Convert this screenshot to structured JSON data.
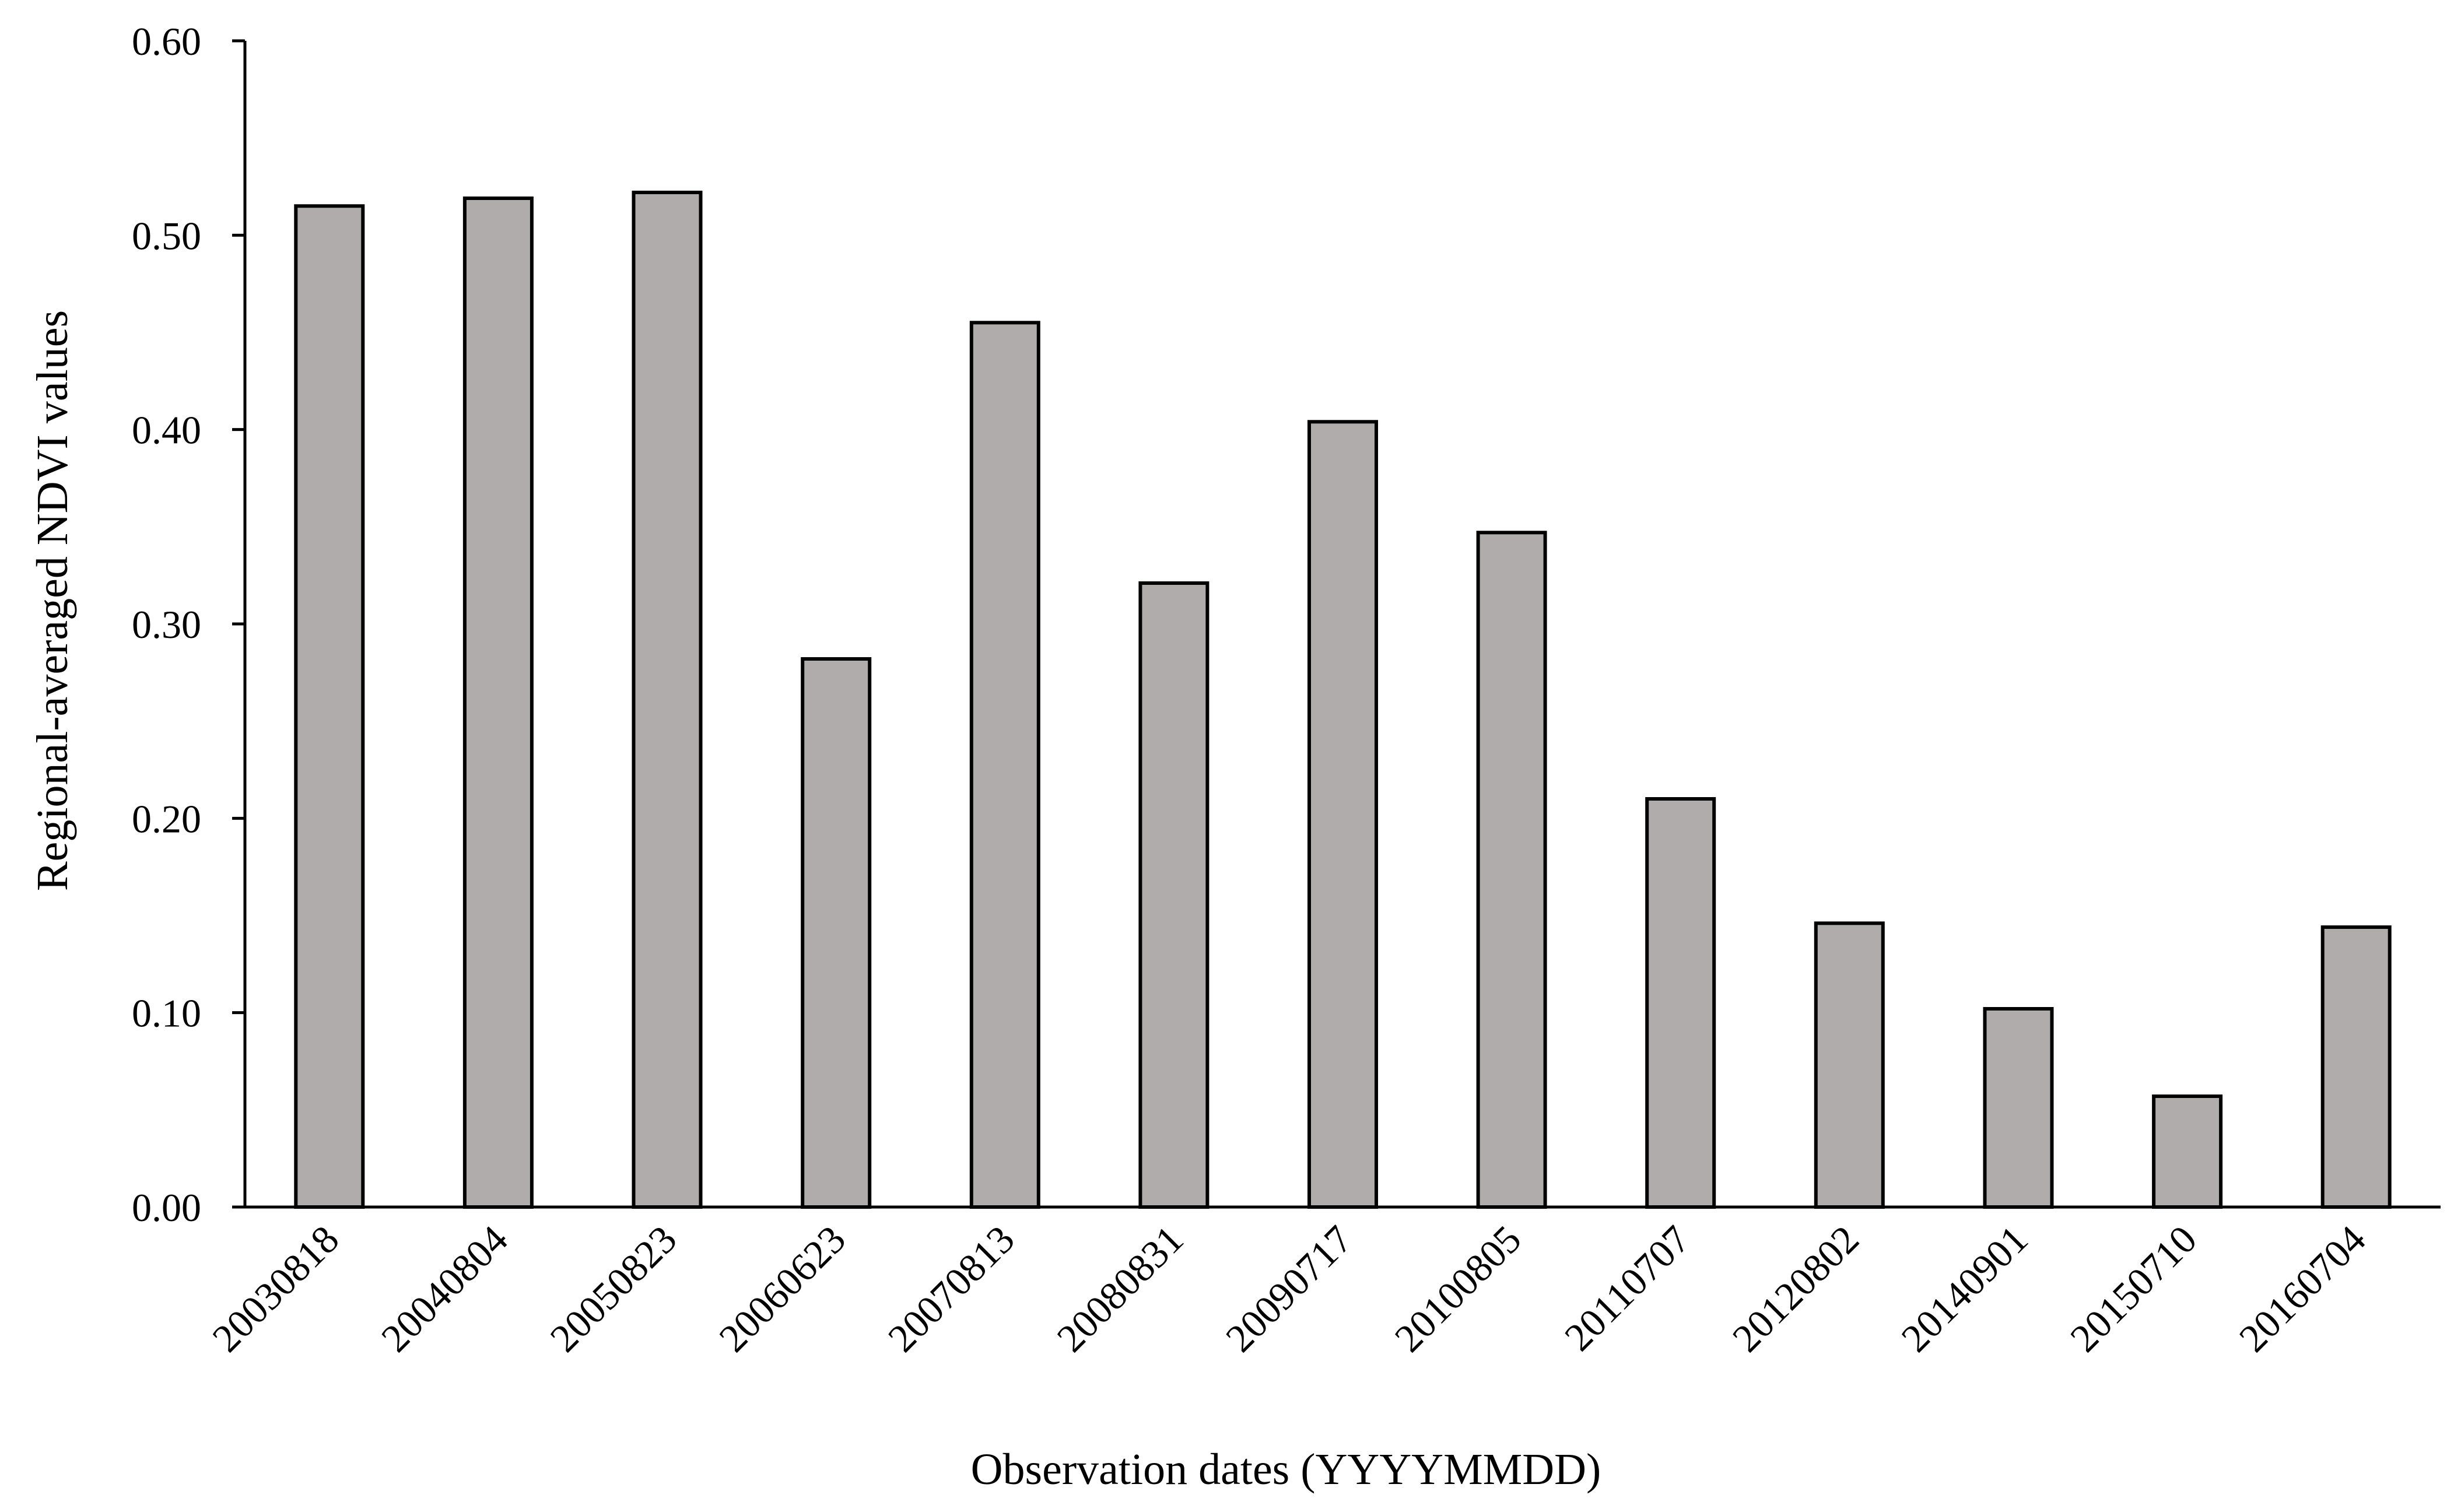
{
  "chart_data": {
    "type": "bar",
    "title": "",
    "xlabel": "Observation dates (YYYYMMDD)",
    "ylabel": "Regional-averaged NDVI values",
    "categories": [
      "20030818",
      "20040804",
      "20050823",
      "20060623",
      "20070813",
      "20080831",
      "20090717",
      "20100805",
      "20110707",
      "20120802",
      "20140901",
      "20150710",
      "20160704"
    ],
    "values": [
      0.515,
      0.519,
      0.522,
      0.282,
      0.455,
      0.321,
      0.404,
      0.347,
      0.21,
      0.146,
      0.102,
      0.057,
      0.144
    ],
    "ylim": [
      0,
      0.6
    ],
    "yticks": [
      "0.00",
      "0.10",
      "0.20",
      "0.30",
      "0.40",
      "0.50",
      "0.60"
    ],
    "ytick_values": [
      0,
      0.1,
      0.2,
      0.3,
      0.4,
      0.5,
      0.6
    ],
    "grid": false,
    "legend": "none",
    "colors": {
      "bar_fill": "#b0acab",
      "bar_stroke": "#000000",
      "axis": "#000000"
    }
  }
}
